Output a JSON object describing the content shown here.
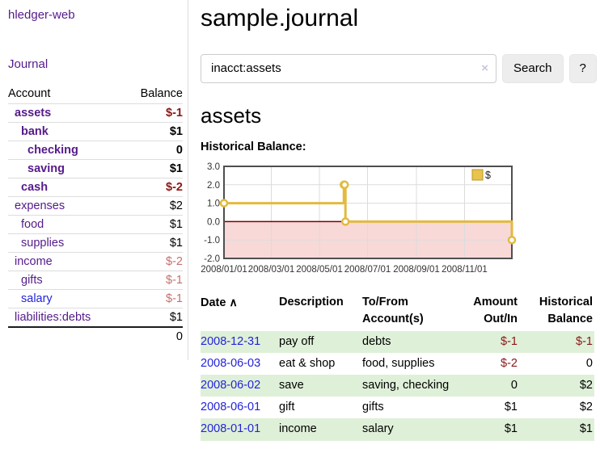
{
  "app_title": "hledger-web",
  "colors": {
    "link_purple": "#551a8b",
    "link_blue": "#2323d9",
    "negative_strong": "#8b1717",
    "negative_soft": "#c47070",
    "stripe_green": "#dff0d8",
    "button_bg": "#ededed"
  },
  "sidebar": {
    "journal_link": "Journal",
    "accounts_table": {
      "headers": {
        "account": "Account",
        "balance": "Balance"
      },
      "rows": [
        {
          "name": "assets",
          "indent": 1,
          "balance": "$-1",
          "matched": true,
          "negative": "strong"
        },
        {
          "name": "bank",
          "indent": 2,
          "balance": "$1",
          "matched": true
        },
        {
          "name": "checking",
          "indent": 3,
          "balance": "0",
          "matched": true
        },
        {
          "name": "saving",
          "indent": 3,
          "balance": "$1",
          "matched": true
        },
        {
          "name": "cash",
          "indent": 2,
          "balance": "$-2",
          "matched": true,
          "negative": "strong"
        },
        {
          "name": "expenses",
          "indent": 1,
          "balance": "$2"
        },
        {
          "name": "food",
          "indent": 2,
          "balance": "$1"
        },
        {
          "name": "supplies",
          "indent": 2,
          "balance": "$1"
        },
        {
          "name": "income",
          "indent": 1,
          "balance": "$-2",
          "negative": "soft"
        },
        {
          "name": "gifts",
          "indent": 2,
          "balance": "$-1",
          "negative": "soft"
        },
        {
          "name": "salary",
          "indent": 2,
          "balance": "$-1",
          "negative": "soft",
          "blue": true
        },
        {
          "name": "liabilities:debts",
          "indent": 1,
          "balance": "$1"
        }
      ],
      "total": "0"
    }
  },
  "main": {
    "page_title": "sample.journal",
    "search": {
      "value": "inacct:assets",
      "clear_icon": "×",
      "search_button": "Search",
      "help_button": "?"
    },
    "account_heading": "assets",
    "chart_title": "Historical Balance:"
  },
  "chart_data": {
    "type": "line",
    "step": true,
    "title": "Historical Balance:",
    "series": [
      {
        "name": "$",
        "points": [
          {
            "date": "2008-01-01",
            "value": 1
          },
          {
            "date": "2008-06-01",
            "value": 2
          },
          {
            "date": "2008-06-02",
            "value": 2
          },
          {
            "date": "2008-06-03",
            "value": 0
          },
          {
            "date": "2008-12-31",
            "value": -1
          }
        ]
      }
    ],
    "x_range": [
      "2008-01-01",
      "2008-12-31"
    ],
    "ylim": [
      -2,
      3
    ],
    "y_ticks": [
      {
        "label": "3.0",
        "value": 3
      },
      {
        "label": "2.0",
        "value": 2
      },
      {
        "label": "1.0",
        "value": 1
      },
      {
        "label": "0.0",
        "value": 0
      },
      {
        "label": "-1.0",
        "value": -1
      },
      {
        "label": "-2.0",
        "value": -2
      }
    ],
    "x_ticks": [
      {
        "label": "2008/01/01",
        "date": "2008-01-01"
      },
      {
        "label": "2008/03/01",
        "date": "2008-03-01"
      },
      {
        "label": "2008/05/01",
        "date": "2008-05-01"
      },
      {
        "label": "2008/07/01",
        "date": "2008-07-01"
      },
      {
        "label": "2008/09/01",
        "date": "2008-09-01"
      },
      {
        "label": "2008/11/01",
        "date": "2008-11-01"
      }
    ],
    "grid": true,
    "negative_region": true,
    "legend": {
      "label": "$",
      "position": "top-right"
    },
    "colors": {
      "line": "#e3ba3f",
      "marker_fill": "#ffffff",
      "negative_bg": "#f9d8d8",
      "zero_line": "#7c0000",
      "border": "#4f4f4f",
      "grid": "#dcdcdc",
      "tick_text": "#333333",
      "legend_fill": "#e8c44d",
      "legend_border": "#bb9629"
    }
  },
  "register": {
    "headers": {
      "date": "Date",
      "sort_icon": "∧",
      "description": "Description",
      "accounts": "To/From Account(s)",
      "amount": "Amount Out/In",
      "balance": "Historical Balance"
    },
    "rows": [
      {
        "date": "2008-12-31",
        "description": "pay off",
        "accounts": "debts",
        "amount": "$-1",
        "amount_negative": true,
        "balance": "$-1",
        "balance_negative": true
      },
      {
        "date": "2008-06-03",
        "description": "eat & shop",
        "accounts": "food, supplies",
        "amount": "$-2",
        "amount_negative": true,
        "balance": "0"
      },
      {
        "date": "2008-06-02",
        "description": "save",
        "accounts": "saving, checking",
        "amount": "0",
        "balance": "$2"
      },
      {
        "date": "2008-06-01",
        "description": "gift",
        "accounts": "gifts",
        "amount": "$1",
        "balance": "$2"
      },
      {
        "date": "2008-01-01",
        "description": "income",
        "accounts": "salary",
        "amount": "$1",
        "balance": "$1"
      }
    ]
  }
}
